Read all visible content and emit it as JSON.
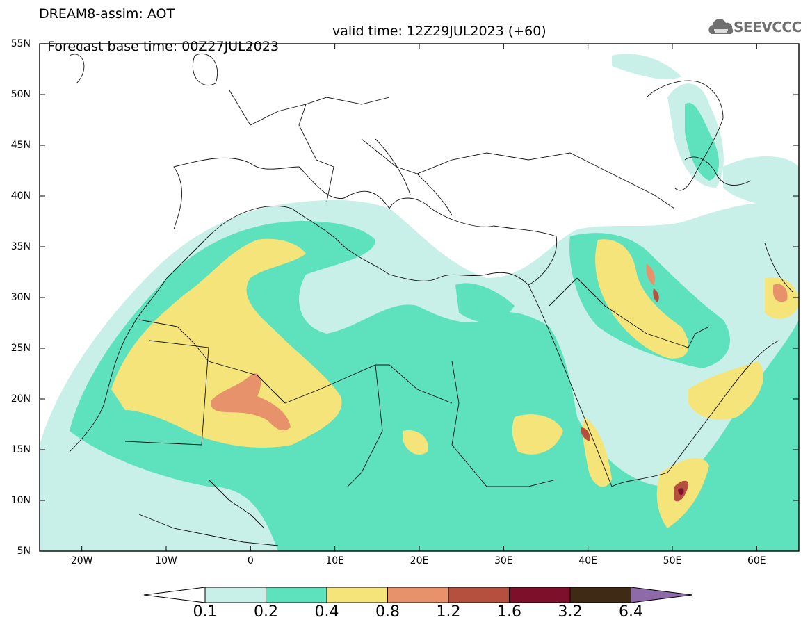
{
  "header": {
    "title_line1": "DREAM8-assim: AOT",
    "base_time": "Forecast base time: 00Z27JUL2023",
    "valid_time": "valid time: 12Z29JUL2023 (+60)",
    "logo_text": "SEEVCCC"
  },
  "map": {
    "lat_labels": [
      "55N",
      "50N",
      "45N",
      "40N",
      "35N",
      "30N",
      "25N",
      "20N",
      "15N",
      "10N",
      "5N"
    ],
    "lon_labels": [
      "20W",
      "10W",
      "0",
      "10E",
      "20E",
      "30E",
      "40E",
      "50E",
      "60E"
    ],
    "lon_range": [
      -25,
      65
    ],
    "lat_range": [
      5,
      55
    ]
  },
  "colorbar": {
    "levels": [
      "0.1",
      "0.2",
      "0.4",
      "0.8",
      "1.2",
      "1.6",
      "3.2",
      "6.4"
    ],
    "colors": [
      "#ffffff",
      "#c8f0e8",
      "#5de2bd",
      "#f5e47a",
      "#e8926b",
      "#b5503e",
      "#7d0f2a",
      "#3e2a15",
      "#8e6aa8"
    ]
  }
}
